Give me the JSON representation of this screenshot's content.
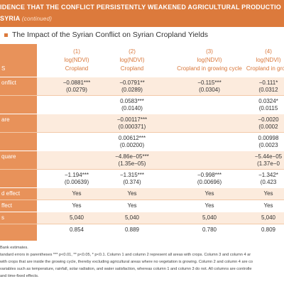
{
  "header": {
    "line1": "IDENCE THAT THE CONFLICT PERSISTENTLY WEAKENED AGRICULTURAL PRODUCTIO",
    "line2": "SYRIA",
    "continued": "(continued)"
  },
  "section_title": "The Impact of the Syrian Conflict on Syrian Cropland Yields",
  "table": {
    "corner": "S",
    "columns": [
      {
        "number": "(1)",
        "dep": "log(NDVI)",
        "sample": "Cropland"
      },
      {
        "number": "(2)",
        "dep": "log(NDVI)",
        "sample": "Cropland"
      },
      {
        "number": "(3)",
        "dep": "log(NDVI)",
        "sample": "Cropland in growing cycle"
      },
      {
        "number": "(4)",
        "dep": "log(NDVI)",
        "sample": "Cropland in growi"
      }
    ],
    "rows": [
      {
        "label": "onflict",
        "values": [
          "−0.0881***",
          "−0.0791**",
          "−0.115***",
          "−0.111*"
        ],
        "se": [
          "(0.0279)",
          "(0.0289)",
          "(0.0304)",
          "(0.0312"
        ]
      },
      {
        "label": null,
        "values": [
          null,
          "0.0583***",
          null,
          "0.0324*"
        ],
        "se": [
          null,
          "(0.0140)",
          null,
          "(0.0115"
        ]
      },
      {
        "label": "are",
        "values": [
          null,
          "−0.00117***",
          null,
          "−0.0020"
        ],
        "se": [
          null,
          "(0.000371)",
          null,
          "(0.0002"
        ]
      },
      {
        "label": null,
        "values": [
          null,
          "0.00612***",
          null,
          "0.00998"
        ],
        "se": [
          null,
          "(0.00200)",
          null,
          "(0.0023"
        ]
      },
      {
        "label": "quare",
        "values": [
          null,
          "−4.86e−05***",
          null,
          "−5.44e−05"
        ],
        "se": [
          null,
          "(1.35e−05)",
          null,
          "(1.37e−0"
        ]
      },
      {
        "label": null,
        "values": [
          "−1.194***",
          "−1.315***",
          "−0.998***",
          "−1.342*"
        ],
        "se": [
          "(0.00639)",
          "(0.374)",
          "(0.00696)",
          "(0.423"
        ]
      },
      {
        "label": "d effect",
        "values": [
          "Yes",
          "Yes",
          "Yes",
          "Yes"
        ]
      },
      {
        "label": "ffect",
        "values": [
          "Yes",
          "Yes",
          "Yes",
          "Yes"
        ]
      },
      {
        "label": "s",
        "values": [
          "5,040",
          "5,040",
          "5,040",
          "5,040"
        ]
      },
      {
        "label": null,
        "values": [
          "0.854",
          "0.889",
          "0.780",
          "0.809"
        ]
      }
    ]
  },
  "notes": [
    "Bank estimates.",
    "tandard errors in parentheses *** p<0.01, ** p<0.05, * p<0.1. Column 1 and column 2 represent all areas with crops. Column 3 and column 4 ar",
    "with crops that are inside the growing cycle, thereby excluding agricultural areas where no vegetation is growing. Column 2 and column 4 are co",
    "variables such as temperature, rainfall, solar radiation, and water satisfaction, whereas column 1 and column 3 do not. All columns are controlle",
    "and time-fixed effects."
  ]
}
